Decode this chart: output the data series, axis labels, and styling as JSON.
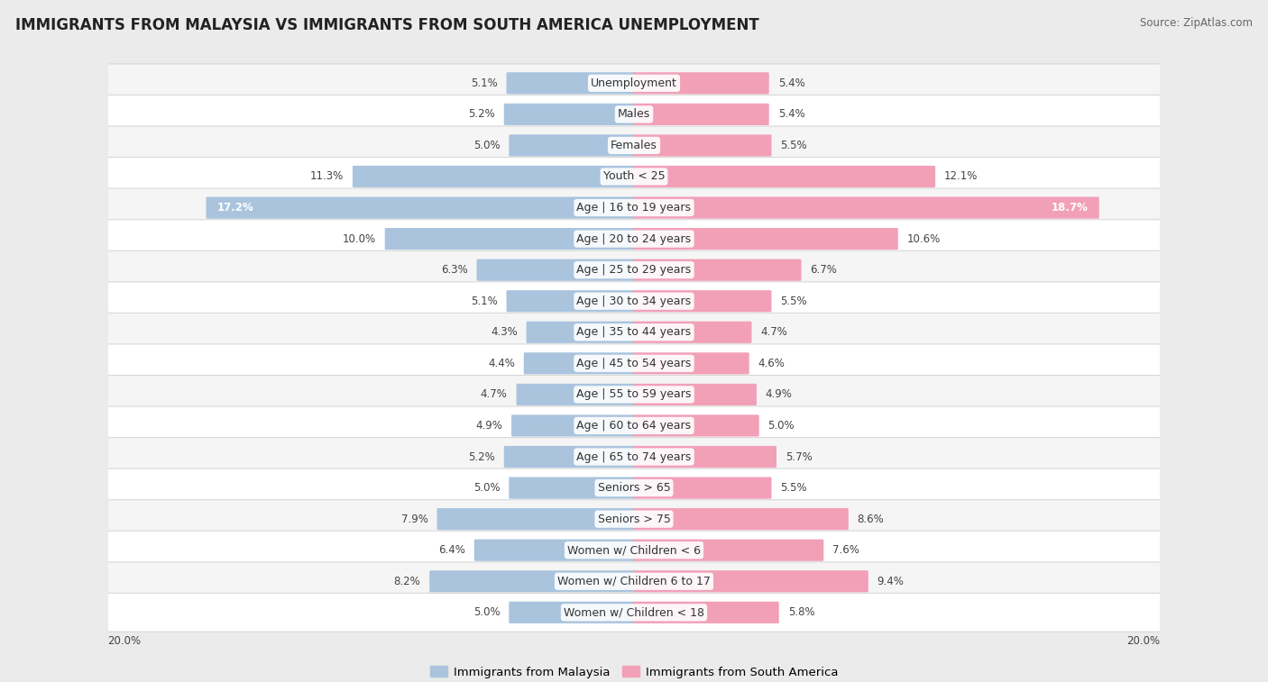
{
  "title": "IMMIGRANTS FROM MALAYSIA VS IMMIGRANTS FROM SOUTH AMERICA UNEMPLOYMENT",
  "source": "Source: ZipAtlas.com",
  "categories": [
    "Unemployment",
    "Males",
    "Females",
    "Youth < 25",
    "Age | 16 to 19 years",
    "Age | 20 to 24 years",
    "Age | 25 to 29 years",
    "Age | 30 to 34 years",
    "Age | 35 to 44 years",
    "Age | 45 to 54 years",
    "Age | 55 to 59 years",
    "Age | 60 to 64 years",
    "Age | 65 to 74 years",
    "Seniors > 65",
    "Seniors > 75",
    "Women w/ Children < 6",
    "Women w/ Children 6 to 17",
    "Women w/ Children < 18"
  ],
  "malaysia_values": [
    5.1,
    5.2,
    5.0,
    11.3,
    17.2,
    10.0,
    6.3,
    5.1,
    4.3,
    4.4,
    4.7,
    4.9,
    5.2,
    5.0,
    7.9,
    6.4,
    8.2,
    5.0
  ],
  "south_america_values": [
    5.4,
    5.4,
    5.5,
    12.1,
    18.7,
    10.6,
    6.7,
    5.5,
    4.7,
    4.6,
    4.9,
    5.0,
    5.7,
    5.5,
    8.6,
    7.6,
    9.4,
    5.8
  ],
  "malaysia_color": "#aac4de",
  "south_america_color": "#f2a0b8",
  "bar_height": 0.62,
  "background_color": "#ebebeb",
  "row_colors": [
    "#f5f5f5",
    "#ffffff"
  ],
  "max_value": 20.0,
  "title_fontsize": 12,
  "label_fontsize": 9,
  "value_fontsize": 8.5,
  "legend_fontsize": 9.5,
  "inside_label_threshold": 14.0
}
